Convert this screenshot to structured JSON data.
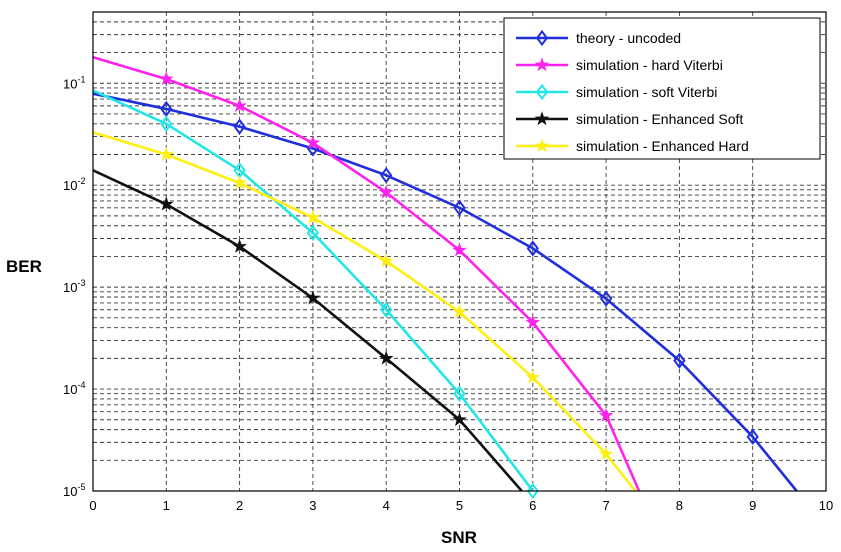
{
  "chart_data": {
    "type": "line",
    "xlabel": "SNR",
    "ylabel": "BER",
    "xlim": [
      0,
      10
    ],
    "ylim": [
      1e-05,
      0.5
    ],
    "yscale": "log",
    "grid": true,
    "legend_position": "top-right",
    "x_ticks": [
      "0",
      "1",
      "2",
      "3",
      "4",
      "5",
      "6",
      "7",
      "8",
      "9",
      "10"
    ],
    "y_ticks": [
      {
        "base": "10",
        "exp": "-5"
      },
      {
        "base": "10",
        "exp": "-4"
      },
      {
        "base": "10",
        "exp": "-3"
      },
      {
        "base": "10",
        "exp": "-2"
      },
      {
        "base": "10",
        "exp": "-1"
      }
    ],
    "series": [
      {
        "name": "theory - uncoded",
        "color": "#1f2fdc",
        "marker": "diamond",
        "x": [
          0,
          1,
          2,
          3,
          4,
          5,
          6,
          7,
          8,
          9,
          9.6
        ],
        "y": [
          0.079,
          0.056,
          0.0375,
          0.0229,
          0.0125,
          0.006,
          0.0024,
          0.00077,
          0.00019,
          3.4e-05,
          1e-05
        ],
        "marker_x": [
          1,
          2,
          3,
          4,
          5,
          6,
          7,
          8,
          9
        ]
      },
      {
        "name": "simulation - hard Viterbi",
        "color": "#ff22ee",
        "marker": "star",
        "x": [
          0,
          1,
          2,
          3,
          4,
          5,
          6,
          7,
          7.45
        ],
        "y": [
          0.18,
          0.11,
          0.06,
          0.026,
          0.0085,
          0.0023,
          0.00045,
          5.5e-05,
          1e-05
        ],
        "marker_x": [
          1,
          2,
          3,
          4,
          5,
          6,
          7
        ]
      },
      {
        "name": "simulation - soft Viterbi",
        "color": "#22e6e6",
        "marker": "diamond",
        "x": [
          0,
          1,
          2,
          3,
          4,
          5,
          6
        ],
        "y": [
          0.085,
          0.04,
          0.014,
          0.0034,
          0.0006,
          9e-05,
          1e-05
        ],
        "marker_x": [
          1,
          2,
          3,
          4,
          5,
          6
        ]
      },
      {
        "name": "simulation - Enhanced Soft",
        "color": "#111111",
        "marker": "star",
        "x": [
          0,
          1,
          2,
          3,
          4,
          5,
          5.85
        ],
        "y": [
          0.014,
          0.0065,
          0.0025,
          0.00078,
          0.0002,
          5e-05,
          1e-05
        ],
        "marker_x": [
          1,
          2,
          3,
          4,
          5
        ]
      },
      {
        "name": "simulation - Enhanced Hard",
        "color": "#ffee11",
        "marker": "star",
        "x": [
          0,
          1,
          2,
          3,
          4,
          5,
          6,
          7,
          7.4
        ],
        "y": [
          0.033,
          0.02,
          0.0105,
          0.0048,
          0.0018,
          0.00057,
          0.00013,
          2.3e-05,
          1e-05
        ],
        "marker_x": [
          1,
          2,
          3,
          4,
          5,
          6,
          7
        ]
      }
    ]
  }
}
